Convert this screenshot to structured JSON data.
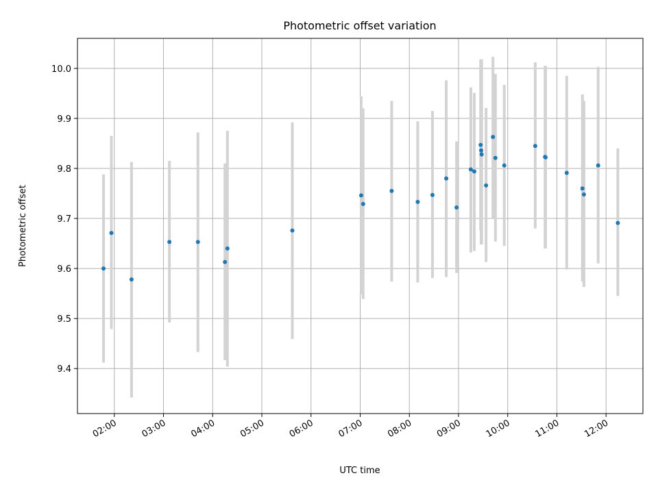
{
  "chart_data": {
    "type": "scatter",
    "title": "Photometric offset variation",
    "xlabel": "UTC time",
    "ylabel": "Photometric offset",
    "x_unit": "UTC time of day (hours)",
    "xlim": [
      1.25,
      12.75
    ],
    "ylim": [
      9.31,
      10.06
    ],
    "grid": true,
    "legend": "none",
    "colors": {
      "point": "#1f77b4",
      "errorbar": "#d3d3d3",
      "grid": "#b0b0b0"
    },
    "x_ticks": [
      {
        "value": 2,
        "label": "02:00"
      },
      {
        "value": 3,
        "label": "03:00"
      },
      {
        "value": 4,
        "label": "04:00"
      },
      {
        "value": 5,
        "label": "05:00"
      },
      {
        "value": 6,
        "label": "06:00"
      },
      {
        "value": 7,
        "label": "07:00"
      },
      {
        "value": 8,
        "label": "08:00"
      },
      {
        "value": 9,
        "label": "09:00"
      },
      {
        "value": 10,
        "label": "10:00"
      },
      {
        "value": 11,
        "label": "11:00"
      },
      {
        "value": 12,
        "label": "12:00"
      }
    ],
    "y_ticks": [
      {
        "value": 9.4,
        "label": "9.4"
      },
      {
        "value": 9.5,
        "label": "9.5"
      },
      {
        "value": 9.6,
        "label": "9.6"
      },
      {
        "value": 9.7,
        "label": "9.7"
      },
      {
        "value": 9.8,
        "label": "9.8"
      },
      {
        "value": 9.9,
        "label": "9.9"
      },
      {
        "value": 10.0,
        "label": "10.0"
      }
    ],
    "points": [
      {
        "x": 1.78,
        "y": 9.6,
        "low": 9.412,
        "high": 9.788
      },
      {
        "x": 1.94,
        "y": 9.671,
        "low": 9.479,
        "high": 9.865
      },
      {
        "x": 2.35,
        "y": 9.578,
        "low": 9.342,
        "high": 9.813
      },
      {
        "x": 3.12,
        "y": 9.653,
        "low": 9.492,
        "high": 9.815
      },
      {
        "x": 3.7,
        "y": 9.653,
        "low": 9.433,
        "high": 9.872
      },
      {
        "x": 4.25,
        "y": 9.613,
        "low": 9.417,
        "high": 9.81
      },
      {
        "x": 4.3,
        "y": 9.64,
        "low": 9.404,
        "high": 9.875
      },
      {
        "x": 5.62,
        "y": 9.676,
        "low": 9.459,
        "high": 9.892
      },
      {
        "x": 7.02,
        "y": 9.746,
        "low": 9.548,
        "high": 9.944
      },
      {
        "x": 7.06,
        "y": 9.729,
        "low": 9.539,
        "high": 9.92
      },
      {
        "x": 7.64,
        "y": 9.755,
        "low": 9.574,
        "high": 9.935
      },
      {
        "x": 8.17,
        "y": 9.733,
        "low": 9.572,
        "high": 9.894
      },
      {
        "x": 8.47,
        "y": 9.747,
        "low": 9.581,
        "high": 9.915
      },
      {
        "x": 8.75,
        "y": 9.78,
        "low": 9.583,
        "high": 9.976
      },
      {
        "x": 8.96,
        "y": 9.722,
        "low": 9.591,
        "high": 9.854
      },
      {
        "x": 9.25,
        "y": 9.798,
        "low": 9.632,
        "high": 9.962
      },
      {
        "x": 9.32,
        "y": 9.794,
        "low": 9.635,
        "high": 9.951
      },
      {
        "x": 9.45,
        "y": 9.847,
        "low": 9.676,
        "high": 10.018
      },
      {
        "x": 9.46,
        "y": 9.836,
        "low": 9.648,
        "high": 10.018
      },
      {
        "x": 9.47,
        "y": 9.828,
        "low": 9.648,
        "high": 10.018
      },
      {
        "x": 9.56,
        "y": 9.766,
        "low": 9.613,
        "high": 9.921
      },
      {
        "x": 9.7,
        "y": 9.863,
        "low": 9.701,
        "high": 10.023
      },
      {
        "x": 9.75,
        "y": 9.821,
        "low": 9.654,
        "high": 9.989
      },
      {
        "x": 9.93,
        "y": 9.806,
        "low": 9.645,
        "high": 9.967
      },
      {
        "x": 10.56,
        "y": 9.845,
        "low": 9.68,
        "high": 10.012
      },
      {
        "x": 10.76,
        "y": 9.823,
        "low": 9.64,
        "high": 10.005
      },
      {
        "x": 10.77,
        "y": 9.822,
        "low": 9.64,
        "high": 10.005
      },
      {
        "x": 11.2,
        "y": 9.791,
        "low": 9.598,
        "high": 9.985
      },
      {
        "x": 11.52,
        "y": 9.76,
        "low": 9.574,
        "high": 9.948
      },
      {
        "x": 11.55,
        "y": 9.748,
        "low": 9.563,
        "high": 9.935
      },
      {
        "x": 11.84,
        "y": 9.806,
        "low": 9.61,
        "high": 10.003
      },
      {
        "x": 12.24,
        "y": 9.691,
        "low": 9.545,
        "high": 9.84
      }
    ]
  }
}
